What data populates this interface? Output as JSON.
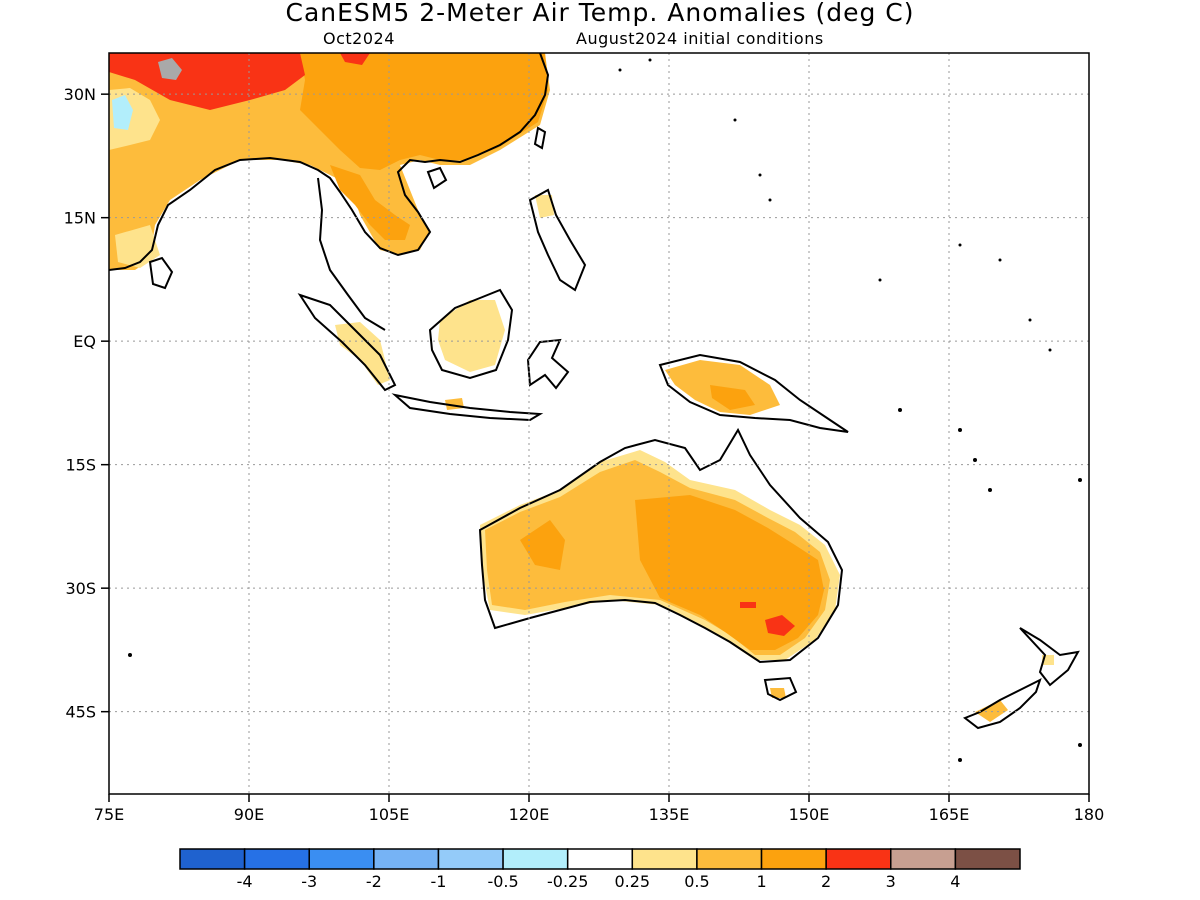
{
  "header": {
    "title": "CanESM5 2-Meter Air Temp. Anomalies (deg C)",
    "valid_month": "Oct2024",
    "init": "August2024 initial conditions"
  },
  "axes": {
    "lat_labels": [
      "30N",
      "15N",
      "EQ",
      "15S",
      "30S",
      "45S"
    ],
    "lat_values": [
      30,
      15,
      0,
      -15,
      -30,
      -45
    ],
    "lon_labels": [
      "75E",
      "90E",
      "105E",
      "120E",
      "135E",
      "150E",
      "165E",
      "180"
    ],
    "lon_values": [
      75,
      90,
      105,
      120,
      135,
      150,
      165,
      180
    ],
    "lat_range": [
      -55,
      35
    ],
    "lon_range": [
      75,
      180
    ],
    "grid": "dotted"
  },
  "colorbar": {
    "colors": [
      "#1f62cf",
      "#2671e6",
      "#3a8ef2",
      "#76b3f5",
      "#94cbf9",
      "#b2eefb",
      "#ffffff",
      "#fee38c",
      "#fdbc3c",
      "#fca20e",
      "#f93315",
      "#c79f91",
      "#7c5045"
    ],
    "labels": [
      "-4",
      "-3",
      "-2",
      "-1",
      "-0.5",
      "-0.25",
      "0.25",
      "0.5",
      "1",
      "2",
      "3",
      "4"
    ]
  },
  "colors": {
    "light_yellow": "#fee38c",
    "light_orange": "#fdbc3c",
    "orange": "#fca20e",
    "red": "#f93315",
    "grey": "#a9a9a9",
    "light_blue": "#b2eefb",
    "coast": "#000000"
  }
}
